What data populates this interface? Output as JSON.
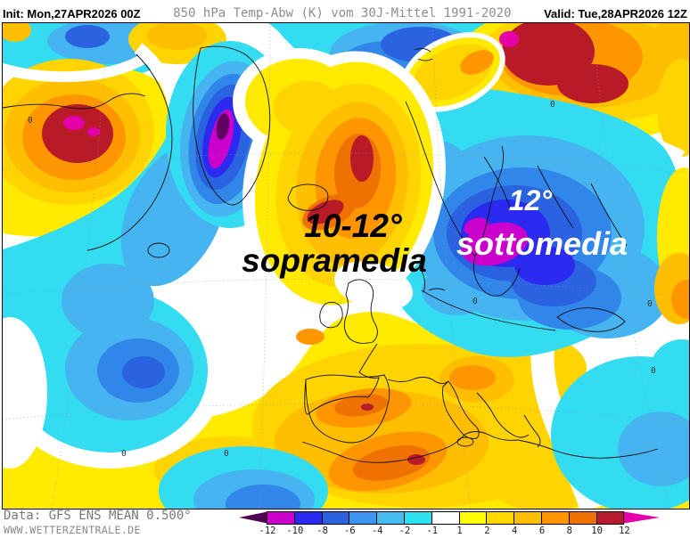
{
  "header": {
    "init_label": "Init: Mon,27APR2026 00Z",
    "title": "850 hPa Temp-Abw (K) vom 30J-Mittel 1991-2020",
    "valid_label": "Valid: Tue,28APR2026 12Z"
  },
  "map": {
    "contour_label": "0",
    "annotation_warm": {
      "line1": "10-12°",
      "line2": "sopramedia",
      "color": "#000000"
    },
    "annotation_cold": {
      "line1": "12°",
      "line2": "sottomedia",
      "color": "#ffffff"
    }
  },
  "footer": {
    "data_source": "Data: GFS ENS MEAN 0.500°",
    "website": "WWW.WETTERZENTRALE.DE"
  },
  "legend": {
    "tick_labels": [
      "-12",
      "-10",
      "-8",
      "-6",
      "-4",
      "-2",
      "-1",
      "1",
      "2",
      "4",
      "6",
      "8",
      "10",
      "12"
    ],
    "segment_colors": [
      "#cc00cc",
      "#2a2af0",
      "#2a62e0",
      "#3c96f0",
      "#46bdf0",
      "#2ee1f0",
      "#ffffff",
      "#ffff00",
      "#ffd800",
      "#ffbe00",
      "#ff9600",
      "#ef7100",
      "#b81a30"
    ],
    "left_arrow_color": "#500050",
    "right_arrow_color": "#e600aa"
  },
  "palette": {
    "cyan": "#34dcf2",
    "blue_light": "#46b4f0",
    "blue_medium": "#3186ea",
    "blue_royal": "#2a62e0",
    "blue_strong": "#2a2af0",
    "magenta": "#cc00cc",
    "deep_purple": "#600060",
    "white": "#ffffff",
    "yellow": "#ffea00",
    "gold": "#ffd400",
    "amber": "#ffbe00",
    "orange": "#ff9600",
    "orange_dark": "#ef7100",
    "crimson": "#b81a28",
    "pink": "#e600aa"
  }
}
